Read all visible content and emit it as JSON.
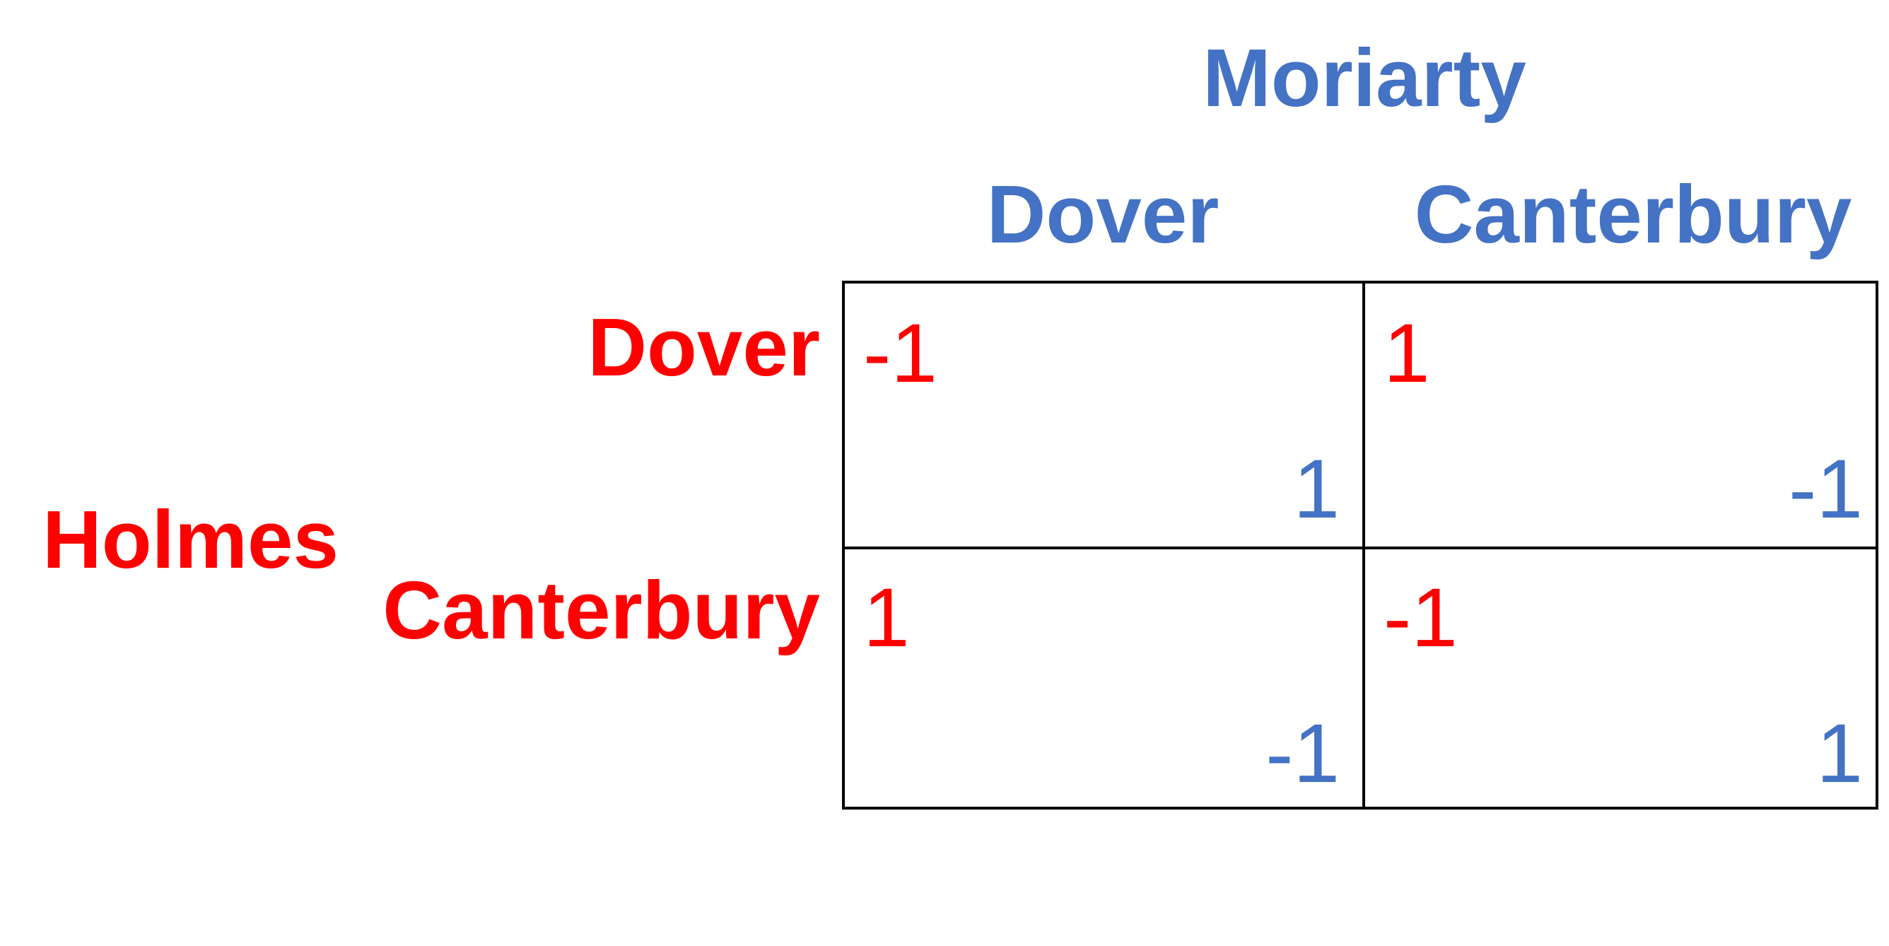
{
  "column_player": {
    "name": "Moriarty",
    "strategies": [
      "Dover",
      "Canterbury"
    ]
  },
  "row_player": {
    "name": "Holmes",
    "strategies": [
      "Dover",
      "Canterbury"
    ]
  },
  "payoffs": [
    [
      {
        "holmes": "-1",
        "moriarty": "1"
      },
      {
        "holmes": "1",
        "moriarty": "-1"
      }
    ],
    [
      {
        "holmes": "1",
        "moriarty": "-1"
      },
      {
        "holmes": "-1",
        "moriarty": "1"
      }
    ]
  ],
  "colors": {
    "holmes": "#ff0000",
    "moriarty": "#4472c4",
    "grid": "#000000"
  }
}
